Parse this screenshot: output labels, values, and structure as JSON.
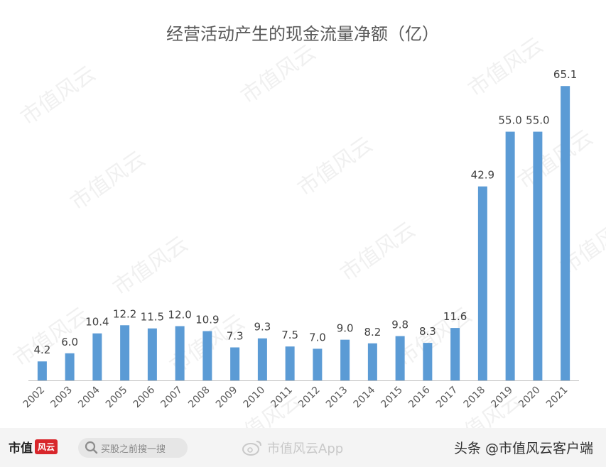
{
  "chart_data": {
    "type": "bar",
    "title": "经营活动产生的现金流量净额（亿）",
    "categories": [
      "2002",
      "2003",
      "2004",
      "2005",
      "2006",
      "2007",
      "2008",
      "2009",
      "2010",
      "2011",
      "2012",
      "2013",
      "2014",
      "2015",
      "2016",
      "2017",
      "2018",
      "2019",
      "2020",
      "2021"
    ],
    "values": [
      4.2,
      6.0,
      10.4,
      12.2,
      11.5,
      12.0,
      10.9,
      7.3,
      9.3,
      7.5,
      7.0,
      9.0,
      8.2,
      9.8,
      8.3,
      11.6,
      42.9,
      55.0,
      55.0,
      65.1
    ],
    "value_labels": [
      "4.2",
      "6.0",
      "10.4",
      "12.2",
      "11.5",
      "12.0",
      "10.9",
      "7.3",
      "9.3",
      "7.5",
      "7.0",
      "9.0",
      "8.2",
      "9.8",
      "8.3",
      "11.6",
      "42.9",
      "55.0",
      "55.0",
      "65.1"
    ],
    "ylim": [
      0,
      70
    ],
    "bar_color": "#5b9bd5",
    "grid": false,
    "legend": "none"
  },
  "watermark_text": "市值风云",
  "footer": {
    "logo_text": "市值",
    "logo_mark": "风云",
    "search_text": "买股之前搜一搜",
    "weibo_text": "市值风云App",
    "toutiao_text": "头条 @市值风云客户端"
  }
}
